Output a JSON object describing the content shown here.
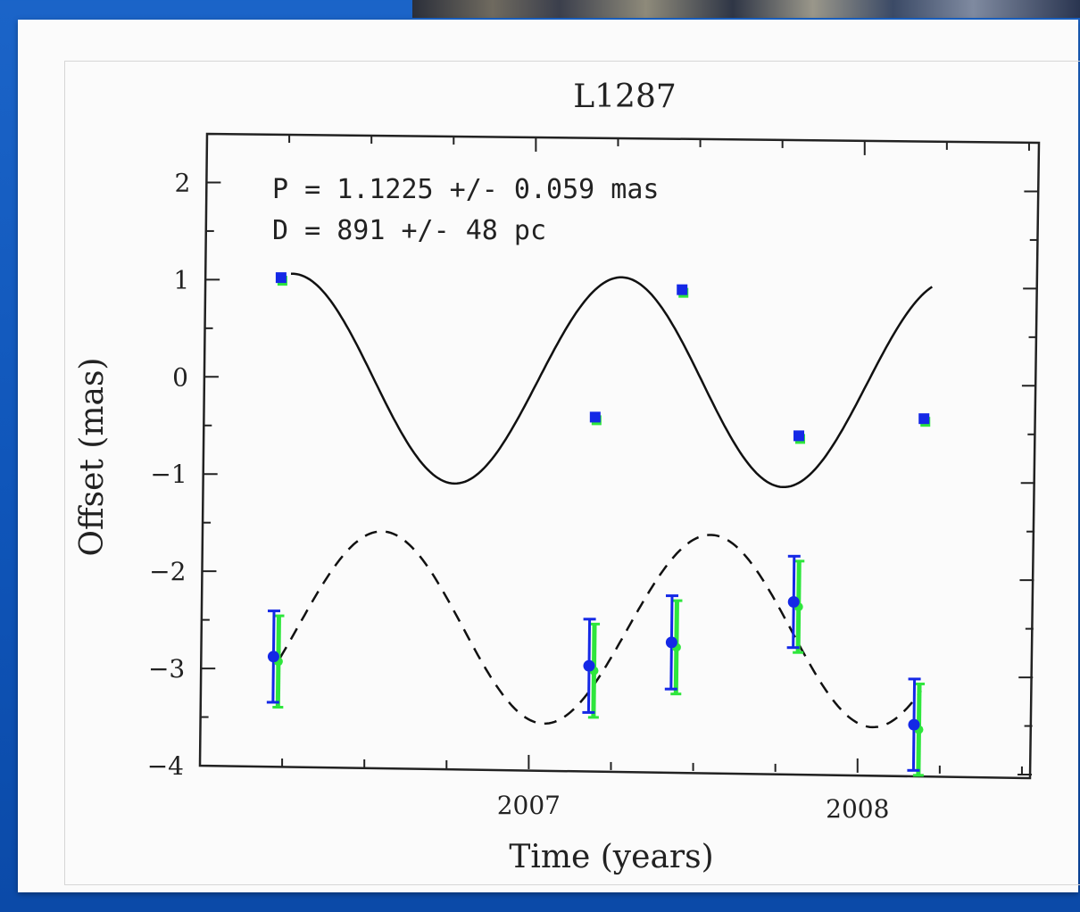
{
  "chart_data": {
    "type": "scatter",
    "title": "L1287",
    "xlabel": "Time (years)",
    "ylabel": "Offset (mas)",
    "xlim": [
      2006.0,
      2008.53
    ],
    "ylim": [
      -4,
      2.5
    ],
    "x_ticks": [
      2007,
      2008
    ],
    "y_ticks": [
      2,
      1,
      0,
      -1,
      -2,
      -3,
      -4
    ],
    "annotations": [
      "P = 1.1225 +/- 0.059 mas",
      "D = 891 +/- 48 pc"
    ],
    "colors": {
      "primary": "#1428e6",
      "secondary": "#2ee63c",
      "curve": "#111111"
    },
    "series": [
      {
        "points": [
          {
            "x": 2006.23,
            "y": 1.02
          },
          {
            "x": 2007.19,
            "y": -0.38
          },
          {
            "x": 2007.45,
            "y": 0.94
          },
          {
            "x": 2007.81,
            "y": -0.55
          },
          {
            "x": 2008.19,
            "y": -0.36
          }
        ],
        "fit": "solid"
      },
      {
        "points": [
          {
            "x": 2006.22,
            "y": -2.87,
            "err": 0.47
          },
          {
            "x": 2007.18,
            "y": -2.93,
            "err": 0.48
          },
          {
            "x": 2007.43,
            "y": -2.68,
            "err": 0.48
          },
          {
            "x": 2007.8,
            "y": -2.25,
            "err": 0.47
          },
          {
            "x": 2008.17,
            "y": -3.5,
            "err": 0.47
          }
        ],
        "fit": "dashed"
      }
    ]
  }
}
